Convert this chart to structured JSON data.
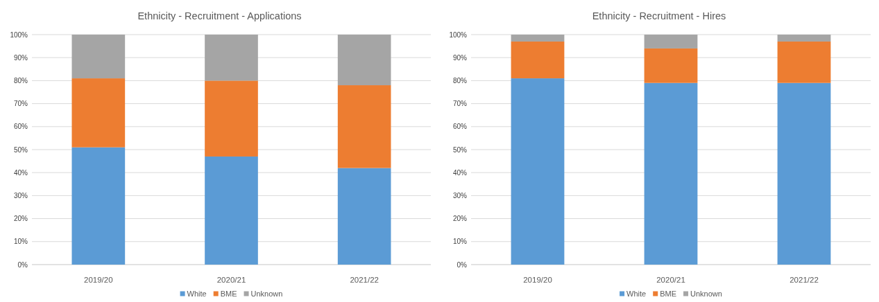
{
  "chart_data": [
    {
      "type": "bar",
      "title": "Ethnicity - Recruitment - Applications",
      "categories": [
        "2019/20",
        "2020/21",
        "2021/22"
      ],
      "series": [
        {
          "name": "White",
          "color": "#5b9bd5",
          "values": [
            51,
            47,
            42
          ]
        },
        {
          "name": "BME",
          "color": "#ed7d31",
          "values": [
            30,
            33,
            36
          ]
        },
        {
          "name": "Unknown",
          "color": "#a5a5a5",
          "values": [
            19,
            20,
            22
          ]
        }
      ],
      "stacked": true,
      "ylim": [
        0,
        100
      ],
      "yticks": [
        {
          "value": 0,
          "label": "0%"
        },
        {
          "value": 10,
          "label": "10%"
        },
        {
          "value": 20,
          "label": "20%"
        },
        {
          "value": 30,
          "label": "30%"
        },
        {
          "value": 40,
          "label": "40%"
        },
        {
          "value": 50,
          "label": "50%"
        },
        {
          "value": 60,
          "label": "60%"
        },
        {
          "value": 70,
          "label": "70%"
        },
        {
          "value": 80,
          "label": "80%"
        },
        {
          "value": 90,
          "label": "90%"
        },
        {
          "value": 100,
          "label": "100%"
        }
      ],
      "grid": "y",
      "legend": "bottom"
    },
    {
      "type": "bar",
      "title": "Ethnicity - Recruitment - Hires",
      "categories": [
        "2019/20",
        "2020/21",
        "2021/22"
      ],
      "series": [
        {
          "name": "White",
          "color": "#5b9bd5",
          "values": [
            81,
            79,
            79
          ]
        },
        {
          "name": "BME",
          "color": "#ed7d31",
          "values": [
            16,
            15,
            18
          ]
        },
        {
          "name": "Unknown",
          "color": "#a5a5a5",
          "values": [
            3,
            6,
            3
          ]
        }
      ],
      "stacked": true,
      "ylim": [
        0,
        100
      ],
      "yticks": [
        {
          "value": 0,
          "label": "0%"
        },
        {
          "value": 10,
          "label": "10%"
        },
        {
          "value": 20,
          "label": "20%"
        },
        {
          "value": 30,
          "label": "30%"
        },
        {
          "value": 40,
          "label": "40%"
        },
        {
          "value": 50,
          "label": "50%"
        },
        {
          "value": 60,
          "label": "60%"
        },
        {
          "value": 70,
          "label": "70%"
        },
        {
          "value": 80,
          "label": "80%"
        },
        {
          "value": 90,
          "label": "90%"
        },
        {
          "value": 100,
          "label": "100%"
        }
      ],
      "grid": "y",
      "legend": "bottom"
    }
  ]
}
